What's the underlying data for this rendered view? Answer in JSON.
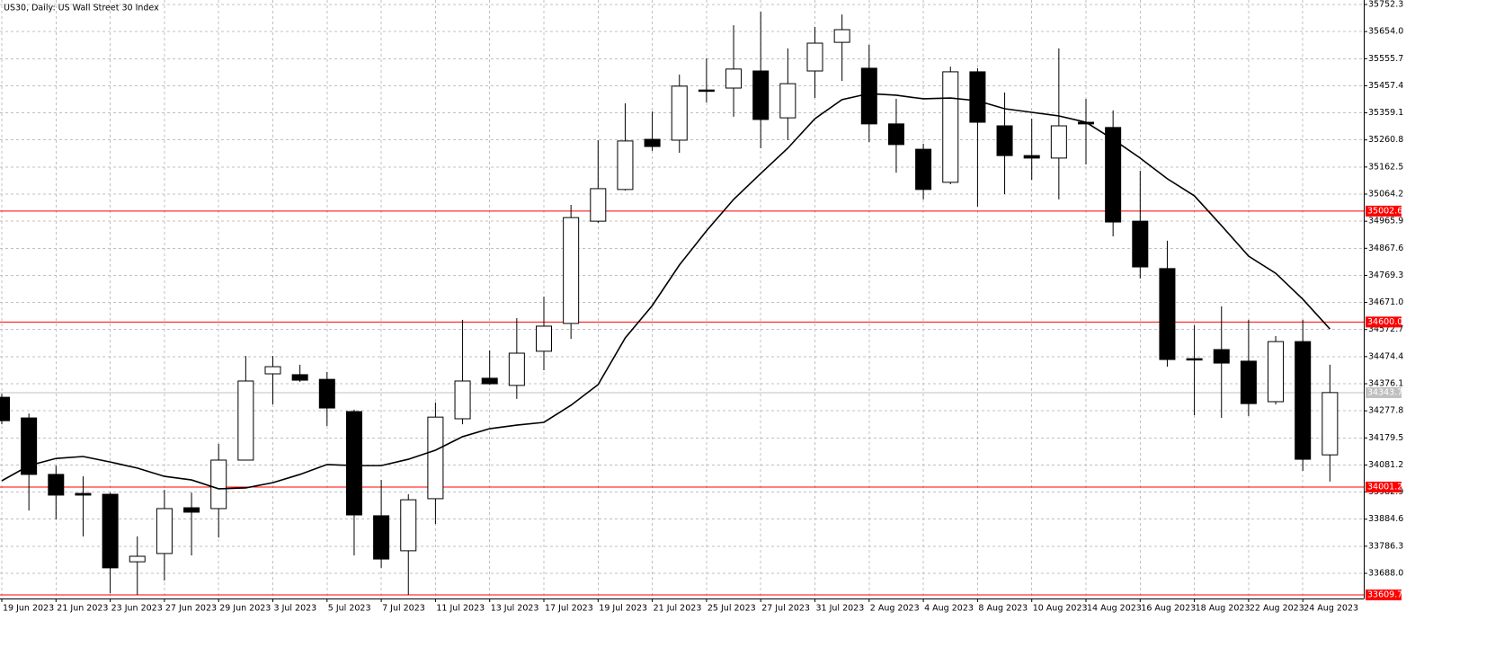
{
  "chart_data": {
    "type": "candlestick",
    "title": "US30, Daily:  US Wall Street 30 Index",
    "categories": [
      "19 Jun 2023",
      null,
      "21 Jun 2023",
      null,
      "23 Jun 2023",
      null,
      "27 Jun 2023",
      null,
      "29 Jun 2023",
      null,
      "3 Jul 2023",
      null,
      "5 Jul 2023",
      null,
      "7 Jul 2023",
      null,
      "11 Jul 2023",
      null,
      "13 Jul 2023",
      null,
      "17 Jul 2023",
      null,
      "19 Jul 2023",
      null,
      "21 Jul 2023",
      null,
      "25 Jul 2023",
      null,
      "27 Jul 2023",
      null,
      "31 Jul 2023",
      null,
      "2 Aug 2023",
      null,
      "4 Aug 2023",
      null,
      "8 Aug 2023",
      null,
      "10 Aug 2023",
      null,
      "14 Aug 2023",
      null,
      "16 Aug 2023",
      null,
      "18 Aug 2023",
      null,
      "22 Aug 2023",
      null,
      "24 Aug 2023",
      null
    ],
    "open": [
      34327,
      34252,
      34047,
      33978,
      33975,
      33730,
      33760,
      33926,
      33923,
      34099,
      34412,
      34409,
      34392,
      34275,
      33897,
      33770,
      33959,
      34249,
      34396,
      34370,
      34494,
      34595,
      34966,
      35081,
      35263,
      35260,
      35442,
      35449,
      35511,
      35341,
      35511,
      35615,
      35521,
      35319,
      35227,
      35107,
      35508,
      35312,
      35204,
      35195,
      35325,
      35306,
      34966,
      34794,
      34467,
      34500,
      34458,
      34311,
      34529,
      34118
    ],
    "high": [
      34340,
      34268,
      34079,
      34040,
      33981,
      33822,
      33991,
      33981,
      34158,
      34477,
      34477,
      34445,
      34419,
      34282,
      34027,
      33975,
      34308,
      34608,
      34497,
      34614,
      34692,
      35025,
      35260,
      35394,
      35364,
      35498,
      35557,
      35677,
      35726,
      35593,
      35671,
      35716,
      35606,
      35410,
      35247,
      35527,
      35521,
      35433,
      35338,
      35593,
      35410,
      35368,
      35149,
      34895,
      34588,
      34657,
      34608,
      34549,
      34608,
      34445
    ],
    "low": [
      34229,
      33916,
      33884,
      33822,
      33616,
      33610,
      33662,
      33753,
      33818,
      34099,
      34301,
      34383,
      34223,
      33753,
      33708,
      33610,
      33867,
      34229,
      34373,
      34321,
      34425,
      34539,
      34960,
      35077,
      35221,
      35214,
      35397,
      35345,
      35231,
      35260,
      35413,
      35475,
      35253,
      35142,
      35045,
      35100,
      35019,
      35064,
      35116,
      35045,
      35172,
      34911,
      34758,
      34438,
      34262,
      34252,
      34259,
      34301,
      34060,
      34021
    ],
    "close": [
      34242,
      34047,
      33972,
      33972,
      33708,
      33750,
      33923,
      33910,
      34099,
      34386,
      34438,
      34389,
      34288,
      33900,
      33740,
      33955,
      34255,
      34386,
      34376,
      34487,
      34585,
      34979,
      35084,
      35257,
      35237,
      35456,
      35439,
      35518,
      35335,
      35465,
      35612,
      35661,
      35319,
      35244,
      35081,
      35508,
      35325,
      35204,
      35195,
      35312,
      35319,
      34963,
      34800,
      34464,
      34464,
      34451,
      34304,
      34529,
      34102,
      34344
    ],
    "moving_average": [
      34024,
      34079,
      34105,
      34112,
      34092,
      34070,
      34040,
      34027,
      33995,
      33998,
      34017,
      34047,
      34083,
      34079,
      34079,
      34102,
      34135,
      34184,
      34213,
      34226,
      34236,
      34298,
      34373,
      34542,
      34660,
      34807,
      34931,
      35045,
      35139,
      35231,
      35338,
      35407,
      35429,
      35423,
      35410,
      35413,
      35403,
      35374,
      35361,
      35348,
      35325,
      35263,
      35195,
      35120,
      35058,
      34950,
      34839,
      34777,
      34683,
      34575
    ],
    "ma_color": "#000000",
    "bull_color": "#ffffff",
    "bear_color": "#000000",
    "ylim": [
      33596.8,
      35768.6
    ],
    "yticks": [
      35752.3,
      {
        "value": 35654,
        "label": "35654.0"
      },
      35555.7,
      35457.4,
      35359.1,
      35260.8,
      35162.5,
      35064.2,
      34965.9,
      34867.6,
      34769.3,
      {
        "value": 34671,
        "label": "34671.0"
      },
      34572.7,
      34474.4,
      34376.1,
      34277.8,
      34179.5,
      34081.2,
      33982.9,
      33884.6,
      33786.3,
      {
        "value": 33688,
        "label": "33688.0"
      }
    ],
    "grid": true,
    "levels": [
      35002.6,
      {
        "value": 34600,
        "label": "34600.0"
      },
      34001.2,
      33609.7
    ],
    "level_color": "#ff0000",
    "last_price": 34343.7,
    "last_price_color": "#c0c0c0"
  }
}
